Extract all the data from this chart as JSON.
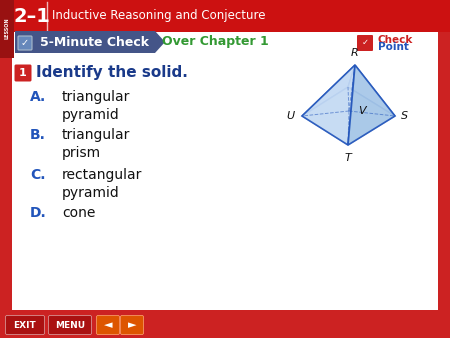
{
  "title_lesson": "2–1",
  "title_text": "Inductive Reasoning and Conjecture",
  "header_bg": "#cc1111",
  "check_label": "5-Minute Check",
  "check_bg": "#445588",
  "over_text": "Over Chapter 1",
  "over_color": "#339933",
  "question_num": "1",
  "question_num_bg": "#cc2222",
  "question_text": "Identify the solid.",
  "question_color": "#1a3a8a",
  "options": [
    {
      "letter": "A.",
      "text": "triangular\npyramid"
    },
    {
      "letter": "B.",
      "text": "triangular\nprism"
    },
    {
      "letter": "C.",
      "text": "rectangular\npyramid"
    },
    {
      "letter": "D.",
      "text": "cone"
    }
  ],
  "option_letter_color": "#2255bb",
  "option_text_color": "#111111",
  "body_bg": "#ffffff",
  "border_bg": "#cc2222",
  "bottom_bar_bg": "#cc2222",
  "pyramid_face_light": "#c8ddf5",
  "pyramid_face_mid": "#a8c8e8",
  "pyramid_face_dark": "#88b0d8",
  "pyramid_edge": "#2255bb",
  "pyramid_labels": [
    "R",
    "U",
    "V",
    "S",
    "T"
  ],
  "checkpoint_color_check": "#cc2222",
  "checkpoint_color_point": "#2255bb"
}
